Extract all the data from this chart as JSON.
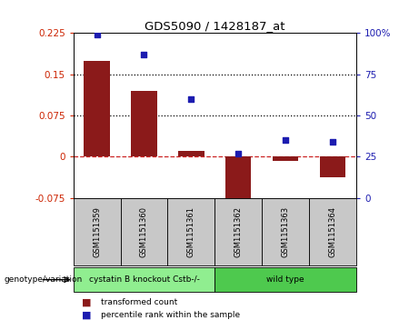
{
  "title": "GDS5090 / 1428187_at",
  "samples": [
    "GSM1151359",
    "GSM1151360",
    "GSM1151361",
    "GSM1151362",
    "GSM1151363",
    "GSM1151364"
  ],
  "bar_values": [
    0.175,
    0.12,
    0.01,
    -0.075,
    -0.008,
    -0.038
  ],
  "percentile_values": [
    99,
    87,
    60,
    27,
    35,
    34
  ],
  "ylim_left": [
    -0.075,
    0.225
  ],
  "ylim_right": [
    0,
    100
  ],
  "yticks_left": [
    -0.075,
    0,
    0.075,
    0.15,
    0.225
  ],
  "ytick_labels_left": [
    "-0.075",
    "0",
    "0.075",
    "0.15",
    "0.225"
  ],
  "yticks_right": [
    0,
    25,
    50,
    75,
    100
  ],
  "ytick_labels_right": [
    "0",
    "25",
    "50",
    "75",
    "100%"
  ],
  "hlines": [
    0.075,
    0.15
  ],
  "bar_color": "#8B1A1A",
  "dot_color": "#1C1CB0",
  "dashed_line_color": "#CC2222",
  "groups": [
    {
      "label": "cystatin B knockout Cstb-/-",
      "indices": [
        0,
        1,
        2
      ],
      "color": "#90EE90"
    },
    {
      "label": "wild type",
      "indices": [
        3,
        4,
        5
      ],
      "color": "#4EC94E"
    }
  ],
  "genotype_label": "genotype/variation",
  "legend_bar_label": "transformed count",
  "legend_dot_label": "percentile rank within the sample",
  "background_color": "#ffffff",
  "gray_box_color": "#C8C8C8"
}
